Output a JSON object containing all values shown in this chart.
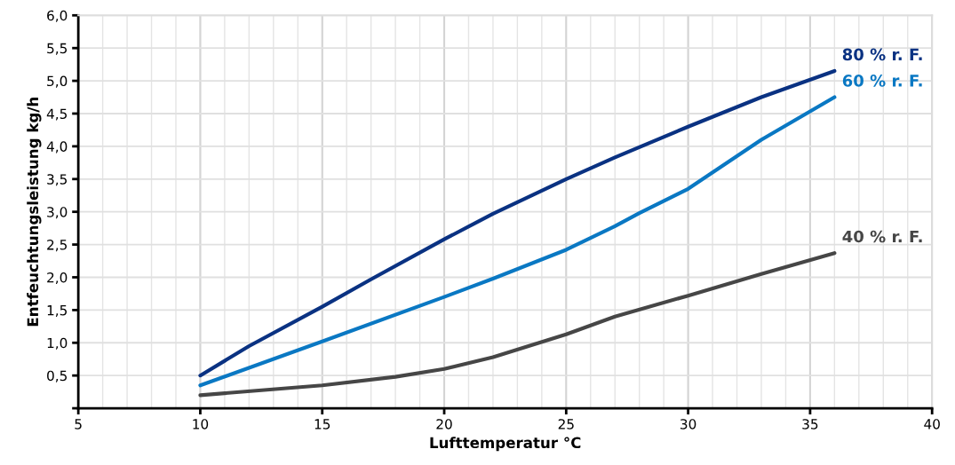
{
  "chart_data": {
    "type": "line",
    "xlabel": "Lufttemperatur °C",
    "ylabel": "Entfeuchtungsleistung kg/h",
    "xlim": [
      5,
      40
    ],
    "xticks": [
      5,
      10,
      15,
      20,
      25,
      30,
      35,
      40
    ],
    "ylim": [
      0,
      6
    ],
    "yticks": [
      {
        "value": 0,
        "label": null
      },
      {
        "value": 0.5,
        "label": "0,5"
      },
      {
        "value": 1,
        "label": "1,0"
      },
      {
        "value": 1.5,
        "label": "1,5"
      },
      {
        "value": 2,
        "label": "2,0"
      },
      {
        "value": 2.5,
        "label": "2,5"
      },
      {
        "value": 3,
        "label": "3,0"
      },
      {
        "value": 3.5,
        "label": "3,5"
      },
      {
        "value": 4,
        "label": "4,0"
      },
      {
        "value": 4.5,
        "label": "4,5"
      },
      {
        "value": 5,
        "label": "5,0"
      },
      {
        "value": 5.5,
        "label": "5,5"
      },
      {
        "value": 6,
        "label": "6,0"
      }
    ],
    "grid": true,
    "legend": false,
    "marker": "none",
    "line_style": "solid",
    "series": [
      {
        "name": "80 % r. F.",
        "color": "#0a3282",
        "x": [
          10,
          12,
          15,
          17,
          20,
          22,
          25,
          27,
          30,
          33,
          36
        ],
        "values": [
          0.5,
          0.95,
          1.55,
          1.97,
          2.58,
          2.97,
          3.5,
          3.83,
          4.3,
          4.75,
          5.15
        ]
      },
      {
        "name": "60 % r. F.",
        "color": "#0a78c3",
        "x": [
          10,
          15,
          20,
          22,
          25,
          27,
          28,
          30,
          33,
          36
        ],
        "values": [
          0.35,
          1.02,
          1.7,
          1.98,
          2.42,
          2.78,
          2.98,
          3.35,
          4.1,
          4.75
        ]
      },
      {
        "name": "40 % r. F.",
        "color": "#464646",
        "x": [
          10,
          15,
          18,
          20,
          22,
          25,
          27,
          30,
          33,
          36
        ],
        "values": [
          0.2,
          0.35,
          0.48,
          0.6,
          0.78,
          1.13,
          1.4,
          1.72,
          2.05,
          2.37
        ]
      }
    ]
  }
}
